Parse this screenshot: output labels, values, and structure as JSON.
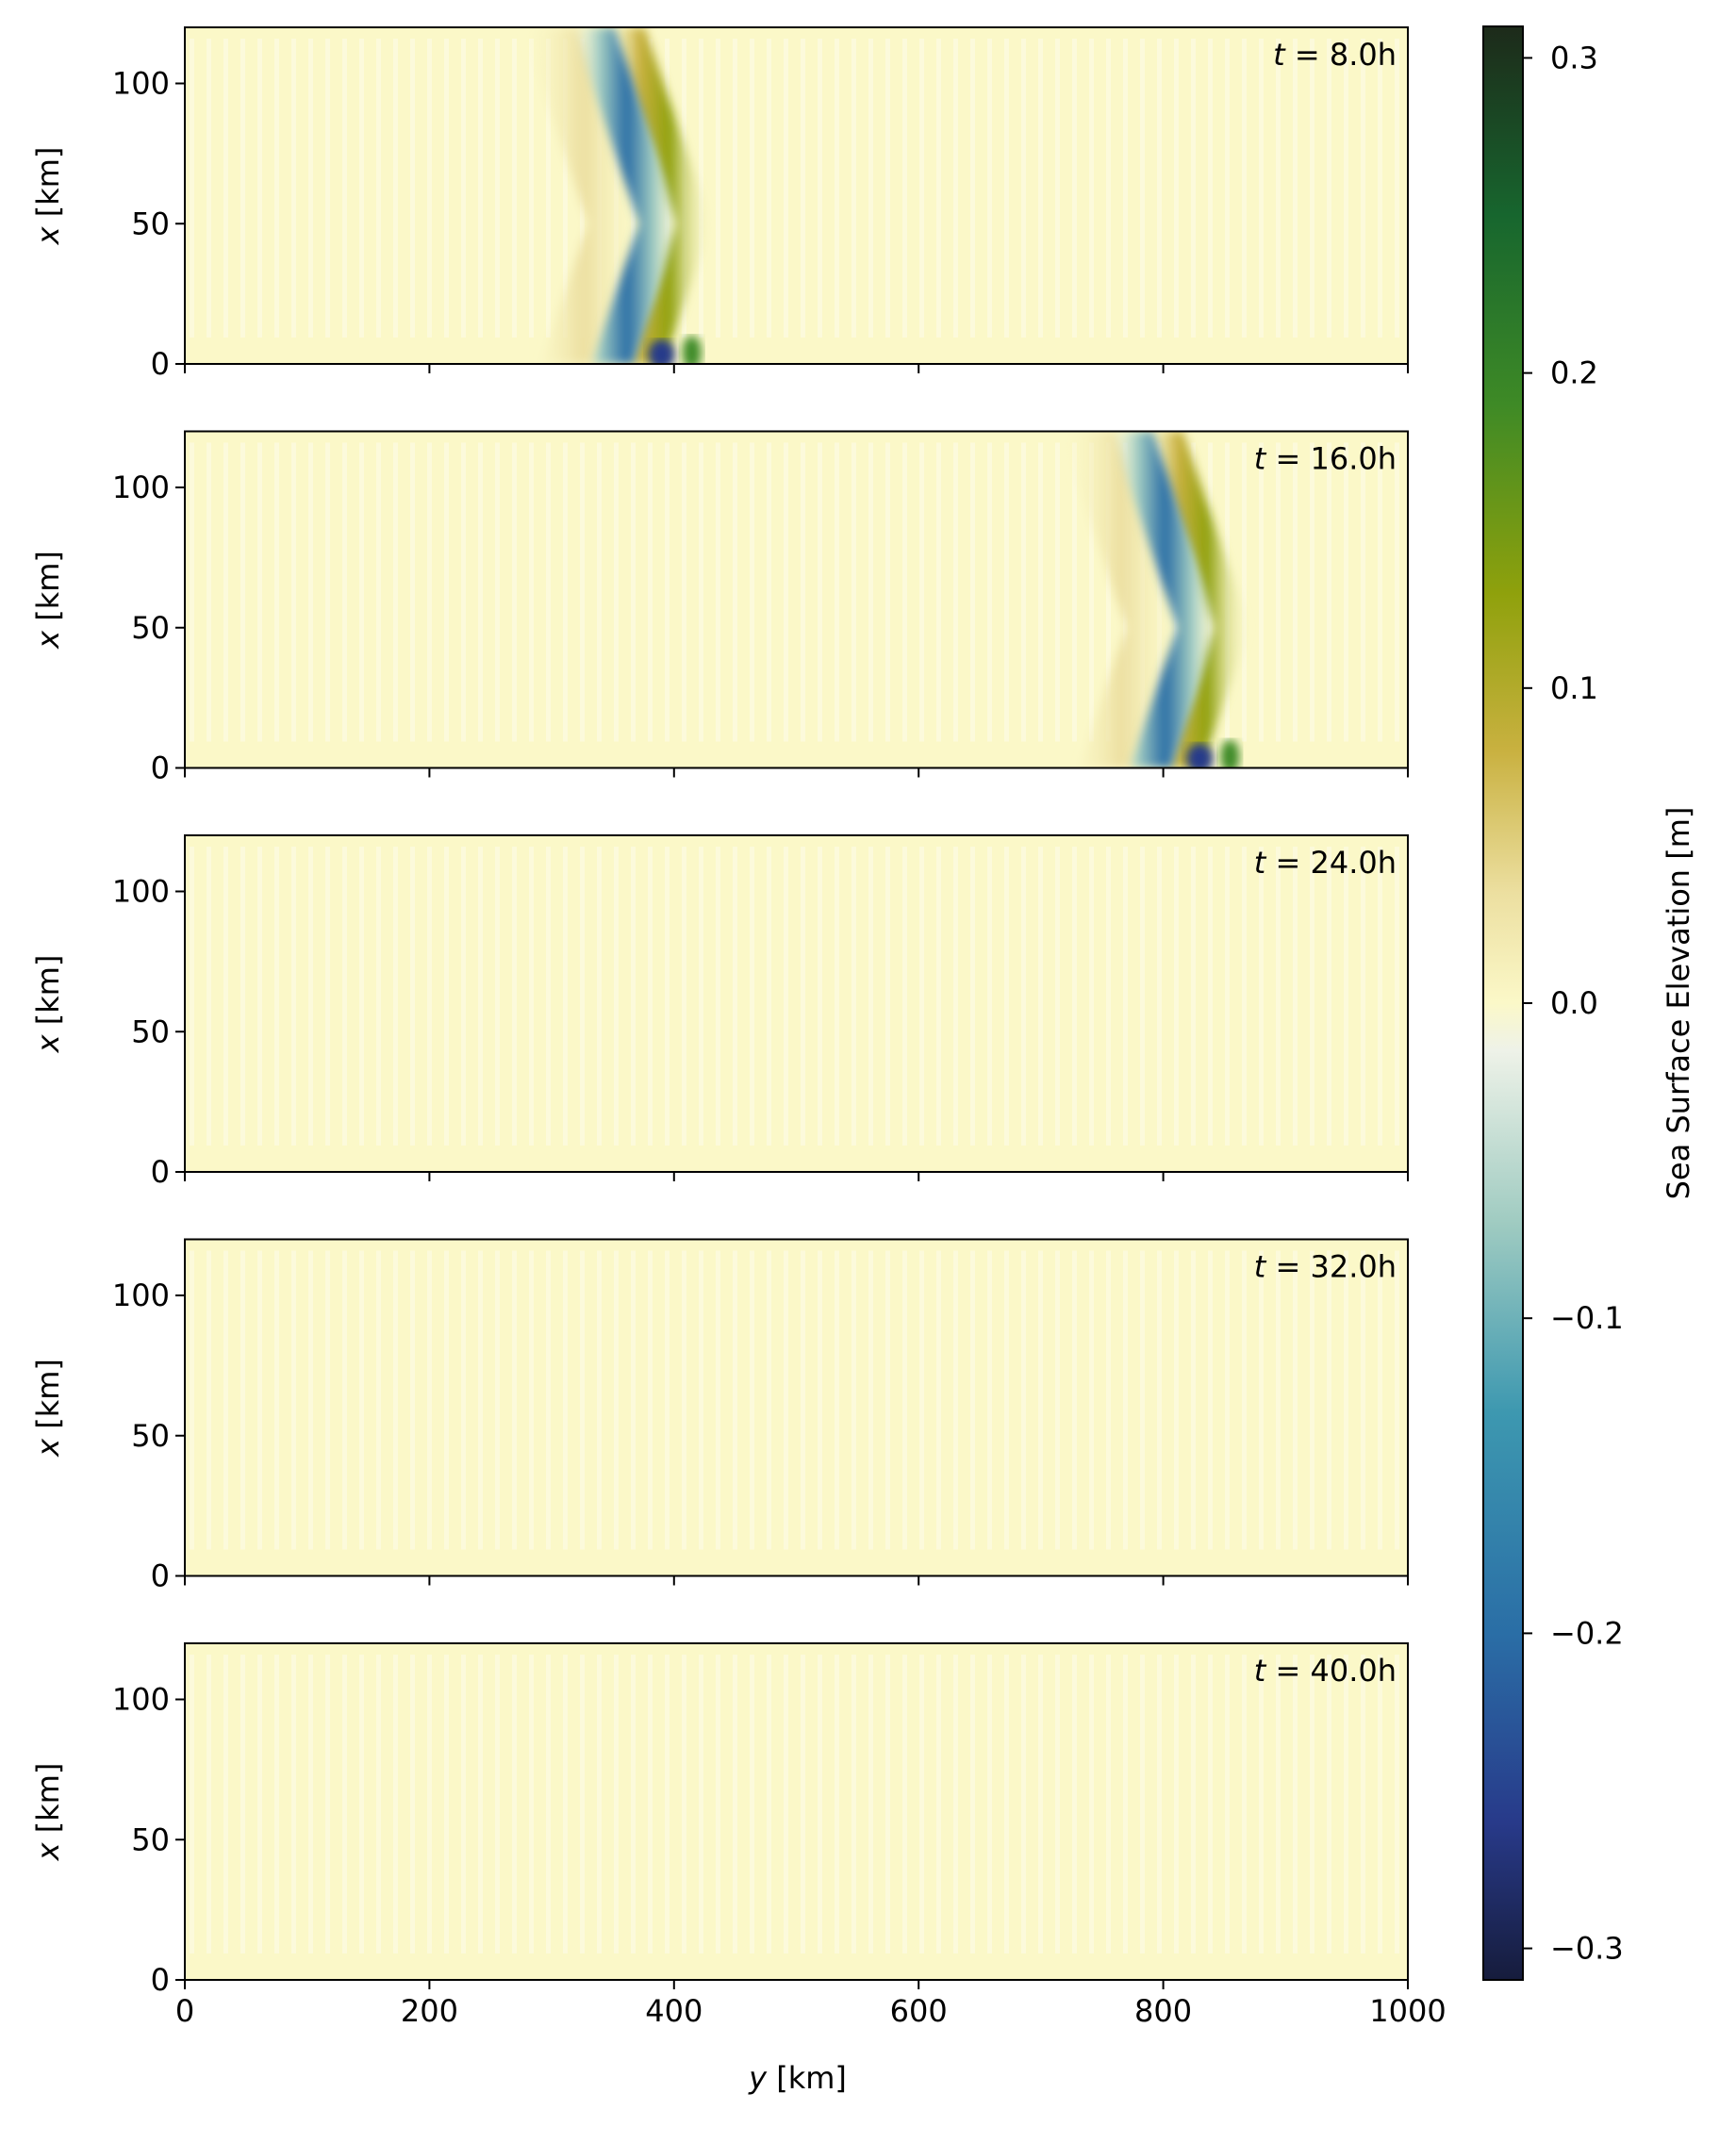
{
  "chart_data": {
    "type": "heatmap",
    "colorbar": {
      "label": "Sea Surface Elevation [m]",
      "range": [
        -0.31,
        0.31
      ],
      "ticks": [
        -0.3,
        -0.2,
        -0.1,
        0.0,
        0.1,
        0.2,
        0.3
      ],
      "tick_labels": [
        "−0.3",
        "−0.2",
        "−0.1",
        "0.0",
        "0.1",
        "0.2",
        "0.3"
      ],
      "colors": [
        {
          "v": -0.31,
          "c": "#161c3c"
        },
        {
          "v": -0.26,
          "c": "#283a8a"
        },
        {
          "v": -0.2,
          "c": "#2a6ea6"
        },
        {
          "v": -0.13,
          "c": "#3d98b0"
        },
        {
          "v": -0.07,
          "c": "#9fcbc1"
        },
        {
          "v": -0.015,
          "c": "#eef2e8"
        },
        {
          "v": 0.0,
          "c": "#fbf8c8"
        },
        {
          "v": 0.035,
          "c": "#ecdfa0"
        },
        {
          "v": 0.08,
          "c": "#c9b140"
        },
        {
          "v": 0.13,
          "c": "#8fa10c"
        },
        {
          "v": 0.19,
          "c": "#3e8a26"
        },
        {
          "v": 0.25,
          "c": "#17662e"
        },
        {
          "v": 0.31,
          "c": "#1d2a1a"
        }
      ]
    },
    "shared_x_axis": {
      "label": "y [km]",
      "label_math": "y",
      "label_unit": " [km]",
      "range": [
        0,
        1000
      ],
      "ticks": [
        0,
        200,
        400,
        600,
        800,
        1000
      ],
      "tick_labels": [
        "0",
        "200",
        "400",
        "600",
        "800",
        "1000"
      ]
    },
    "y_axis": {
      "label": "x [km]",
      "label_math": "x",
      "label_unit": " [km]",
      "range": [
        0,
        120
      ],
      "ticks": [
        0,
        50,
        100
      ],
      "tick_labels": [
        "0",
        "50",
        "100"
      ]
    },
    "panels": [
      {
        "time_label": "t = 8.0h",
        "t": 8.0,
        "time_value": "8.0h",
        "wave_front_y_km": 430,
        "wave_trough_y_km": 395,
        "amplitude_m": 0.3
      },
      {
        "time_label": "t = 16.0h",
        "t": 16.0,
        "time_value": "16.0h",
        "wave_front_y_km": 870,
        "wave_trough_y_km": 825,
        "amplitude_m": 0.3
      },
      {
        "time_label": "t = 24.0h",
        "t": 24.0,
        "time_value": "24.0h",
        "wave_front_y_km": null,
        "amplitude_m": 0.0
      },
      {
        "time_label": "t = 32.0h",
        "t": 32.0,
        "time_value": "32.0h",
        "wave_front_y_km": null,
        "amplitude_m": 0.0
      },
      {
        "time_label": "t = 40.0h",
        "t": 40.0,
        "time_value": "40.0h",
        "wave_front_y_km": null,
        "amplitude_m": 0.0
      }
    ]
  }
}
